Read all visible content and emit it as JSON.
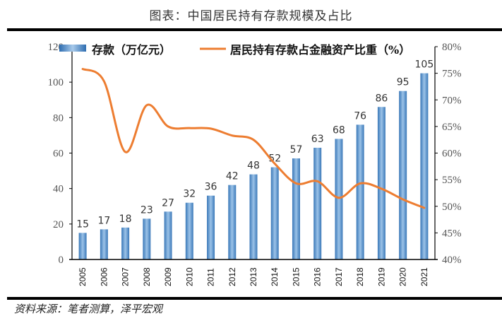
{
  "title": "图表：中国居民持有存款规模及占比",
  "source": "资料来源：笔者测算，泽平宏观",
  "colors": {
    "bar": "#5b9bd5",
    "bar_dark": "#2e75b6",
    "line": "#ed7d31"
  },
  "chart_data": {
    "type": "bar",
    "title": "图表：中国居民持有存款规模及占比",
    "categories": [
      "2005",
      "2006",
      "2007",
      "2008",
      "2009",
      "2010",
      "2011",
      "2012",
      "2013",
      "2014",
      "2015",
      "2016",
      "2017",
      "2018",
      "2019",
      "2020",
      "2021"
    ],
    "series": [
      {
        "name": "存款（万亿元）",
        "type": "bar",
        "axis": "left",
        "values": [
          15,
          17,
          18,
          23,
          27,
          32,
          36,
          42,
          48,
          52,
          57,
          63,
          68,
          76,
          86,
          95,
          105
        ]
      },
      {
        "name": "居民持有存款占金融资产比重（%）",
        "type": "line",
        "axis": "right",
        "values": [
          75.8,
          73.5,
          60.2,
          69.0,
          65.0,
          64.7,
          64.6,
          63.3,
          62.5,
          58.0,
          54.3,
          54.7,
          51.6,
          54.3,
          53.3,
          51.3,
          49.7
        ]
      }
    ],
    "left_axis": {
      "ylim": [
        0,
        120
      ],
      "ticks": [
        "0",
        "20",
        "40",
        "60",
        "80",
        "100",
        "120"
      ]
    },
    "right_axis": {
      "ylim": [
        40,
        80
      ],
      "ticks": [
        "40%",
        "45%",
        "50%",
        "55%",
        "60%",
        "65%",
        "70%",
        "75%",
        "80%"
      ]
    },
    "legend": {
      "placement": "top",
      "entries": [
        "存款（万亿元）",
        "居民持有存款占金融资产比重（%）"
      ]
    },
    "grid": false
  }
}
